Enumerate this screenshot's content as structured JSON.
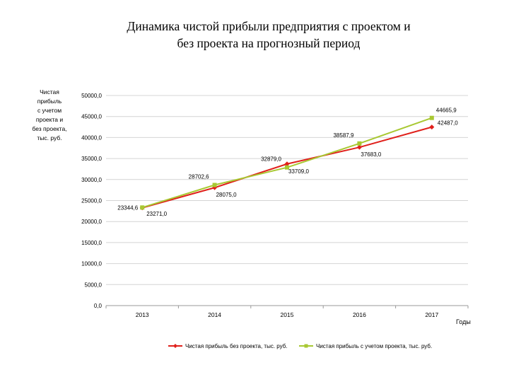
{
  "slide": {
    "title_line1": "Динамика чистой прибыли предприятия с проектом и",
    "title_line2": "без проекта на прогнозный период"
  },
  "chart_data": {
    "type": "line",
    "ylabel_lines": [
      "Чистая",
      "прибыль",
      "с учетом",
      "проекта и",
      "без проекта,",
      "тыс. руб."
    ],
    "xlabel": "Годы",
    "categories": [
      "2013",
      "2014",
      "2015",
      "2016",
      "2017"
    ],
    "ylim": [
      0,
      50000
    ],
    "ytick_labels": [
      "0,0",
      "5000,0",
      "10000,0",
      "15000,0",
      "20000,0",
      "25000,0",
      "30000,0",
      "35000,0",
      "40000,0",
      "45000,0",
      "50000,0"
    ],
    "grid": true,
    "legend_position": "bottom",
    "series": [
      {
        "name": "Чистая прибыль без проекта, тыс. руб.",
        "color": "#e0201b",
        "marker": "diamond",
        "values": [
          23271.0,
          28075.0,
          33709.0,
          37683.0,
          42487.0
        ],
        "labels": [
          "23271,0",
          "28075,0",
          "33709,0",
          "37683,0",
          "42487,0"
        ]
      },
      {
        "name": "Чистая прибыль с учетом проекта, тыс. руб.",
        "color": "#a8c832",
        "marker": "square",
        "values": [
          23344.6,
          28702.6,
          32879.0,
          38587.9,
          44665.9
        ],
        "labels": [
          "23344,6",
          "28702,6",
          "32879,0",
          "38587,9",
          "44665,9"
        ]
      }
    ]
  }
}
